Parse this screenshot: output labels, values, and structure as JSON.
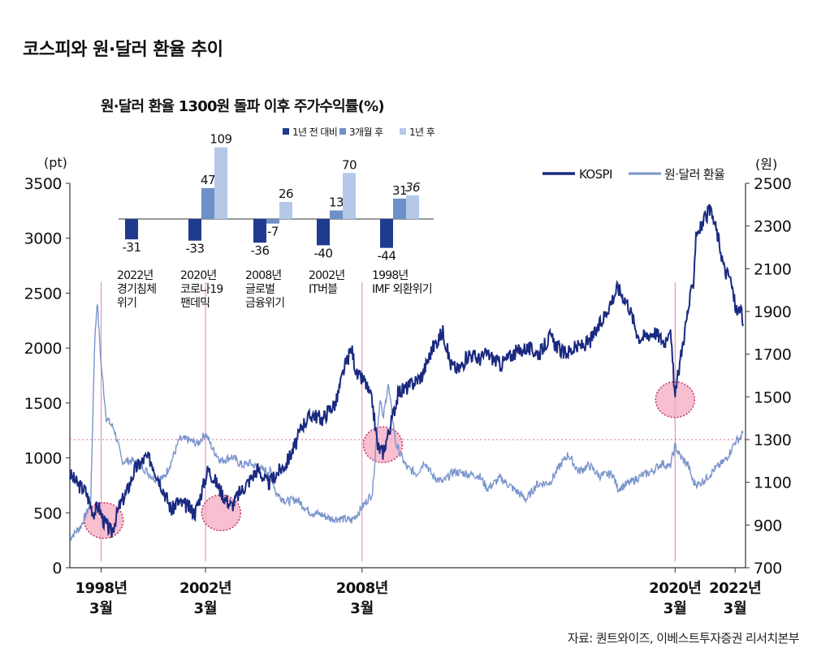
{
  "page": {
    "title": "코스피와 원·달러 환율 추이",
    "source": "자료: 퀀트와이즈, 이베스트투자증권 리서치본부"
  },
  "colors": {
    "kospi": "#1a2a80",
    "fx": "#7b95cc",
    "bar_1y_before": "#1f3b8f",
    "bar_3m_after": "#6f8fc8",
    "bar_1y_after": "#b5c8e8",
    "highlight_fill": "#f4a9c0",
    "highlight_stroke": "#c0306a",
    "marker_line": "#d26a9a"
  },
  "chart_data": [
    {
      "type": "line",
      "title": "코스피와 원·달러 환율 추이",
      "y_left": {
        "label": "(pt)",
        "ylim": [
          0,
          3500
        ],
        "ticks": [
          "3500",
          "3000",
          "2500",
          "2000",
          "1500",
          "1000",
          "500",
          "0"
        ]
      },
      "y_right": {
        "label": "(원)",
        "ylim": [
          700,
          2500
        ],
        "ticks": [
          "2500",
          "2300",
          "2100",
          "1900",
          "1700",
          "1500",
          "1300",
          "1100",
          "900",
          "700"
        ]
      },
      "x_range": [
        1997.0,
        2022.9
      ],
      "x_ticks": [
        {
          "x": 1998.2,
          "line1": "1998년",
          "line2": "3월"
        },
        {
          "x": 2002.2,
          "line1": "2002년",
          "line2": "3월"
        },
        {
          "x": 2008.2,
          "line1": "2008년",
          "line2": "3월"
        },
        {
          "x": 2020.2,
          "line1": "2020년",
          "line2": "3월"
        },
        {
          "x": 2022.5,
          "line1": "2022년",
          "line2": "3월"
        }
      ],
      "legend": [
        {
          "name": "KOSPI",
          "position": "top-right"
        },
        {
          "name": "원·달러 환율",
          "position": "top-right"
        }
      ],
      "reference_level_fx": 1300,
      "event_markers_x": [
        1998.2,
        2002.2,
        2008.2,
        2020.2
      ],
      "highlight_circles": [
        {
          "x": 1998.3,
          "kospi": 430
        },
        {
          "x": 2002.8,
          "kospi": 500
        },
        {
          "x": 2009.0,
          "kospi": 1120
        },
        {
          "x": 2020.2,
          "kospi": 1530
        }
      ],
      "series": [
        {
          "name": "KOSPI",
          "axis": "left",
          "points": [
            [
              1997.0,
              850
            ],
            [
              1997.3,
              760
            ],
            [
              1997.6,
              700
            ],
            [
              1997.9,
              500
            ],
            [
              1998.1,
              560
            ],
            [
              1998.3,
              420
            ],
            [
              1998.6,
              320
            ],
            [
              1998.9,
              560
            ],
            [
              1999.2,
              700
            ],
            [
              1999.5,
              900
            ],
            [
              1999.9,
              1000
            ],
            [
              2000.1,
              980
            ],
            [
              2000.5,
              760
            ],
            [
              2000.9,
              520
            ],
            [
              2001.1,
              600
            ],
            [
              2001.5,
              560
            ],
            [
              2001.8,
              500
            ],
            [
              2002.0,
              650
            ],
            [
              2002.3,
              900
            ],
            [
              2002.6,
              780
            ],
            [
              2002.9,
              650
            ],
            [
              2003.2,
              560
            ],
            [
              2003.5,
              680
            ],
            [
              2003.9,
              800
            ],
            [
              2004.2,
              900
            ],
            [
              2004.6,
              760
            ],
            [
              2004.9,
              850
            ],
            [
              2005.3,
              950
            ],
            [
              2005.7,
              1150
            ],
            [
              2005.9,
              1300
            ],
            [
              2006.3,
              1400
            ],
            [
              2006.7,
              1350
            ],
            [
              2006.9,
              1430
            ],
            [
              2007.2,
              1500
            ],
            [
              2007.5,
              1800
            ],
            [
              2007.8,
              2000
            ],
            [
              2008.0,
              1750
            ],
            [
              2008.3,
              1700
            ],
            [
              2008.6,
              1500
            ],
            [
              2008.8,
              1100
            ],
            [
              2009.0,
              1050
            ],
            [
              2009.3,
              1300
            ],
            [
              2009.6,
              1600
            ],
            [
              2010.0,
              1650
            ],
            [
              2010.5,
              1750
            ],
            [
              2010.9,
              2000
            ],
            [
              2011.3,
              2150
            ],
            [
              2011.6,
              1850
            ],
            [
              2011.9,
              1800
            ],
            [
              2012.3,
              1950
            ],
            [
              2012.7,
              1900
            ],
            [
              2013.0,
              1950
            ],
            [
              2013.5,
              1850
            ],
            [
              2014.0,
              1950
            ],
            [
              2014.5,
              2000
            ],
            [
              2015.0,
              1950
            ],
            [
              2015.4,
              2100
            ],
            [
              2015.9,
              1950
            ],
            [
              2016.4,
              2000
            ],
            [
              2016.9,
              2050
            ],
            [
              2017.3,
              2200
            ],
            [
              2017.7,
              2400
            ],
            [
              2018.0,
              2550
            ],
            [
              2018.4,
              2400
            ],
            [
              2018.8,
              2100
            ],
            [
              2019.0,
              2100
            ],
            [
              2019.4,
              2150
            ],
            [
              2019.8,
              2050
            ],
            [
              2020.0,
              2200
            ],
            [
              2020.2,
              1550
            ],
            [
              2020.4,
              1900
            ],
            [
              2020.7,
              2350
            ],
            [
              2020.9,
              2600
            ],
            [
              2021.0,
              3050
            ],
            [
              2021.2,
              3100
            ],
            [
              2021.5,
              3250
            ],
            [
              2021.7,
              3150
            ],
            [
              2021.9,
              2950
            ],
            [
              2022.1,
              2700
            ],
            [
              2022.3,
              2650
            ],
            [
              2022.5,
              2400
            ],
            [
              2022.6,
              2300
            ],
            [
              2022.7,
              2400
            ],
            [
              2022.8,
              2200
            ]
          ]
        },
        {
          "name": "원·달러 환율",
          "axis": "right",
          "points": [
            [
              1997.0,
              840
            ],
            [
              1997.4,
              890
            ],
            [
              1997.8,
              1000
            ],
            [
              1997.95,
              1750
            ],
            [
              1998.05,
              1950
            ],
            [
              1998.2,
              1650
            ],
            [
              1998.4,
              1400
            ],
            [
              1998.7,
              1350
            ],
            [
              1999.0,
              1200
            ],
            [
              1999.4,
              1200
            ],
            [
              1999.8,
              1170
            ],
            [
              2000.2,
              1120
            ],
            [
              2000.6,
              1120
            ],
            [
              2000.9,
              1200
            ],
            [
              2001.2,
              1300
            ],
            [
              2001.5,
              1300
            ],
            [
              2001.9,
              1280
            ],
            [
              2002.2,
              1330
            ],
            [
              2002.5,
              1250
            ],
            [
              2002.8,
              1200
            ],
            [
              2003.2,
              1220
            ],
            [
              2003.6,
              1180
            ],
            [
              2003.9,
              1190
            ],
            [
              2004.3,
              1160
            ],
            [
              2004.7,
              1150
            ],
            [
              2004.9,
              1050
            ],
            [
              2005.3,
              1010
            ],
            [
              2005.7,
              1020
            ],
            [
              2006.2,
              960
            ],
            [
              2006.6,
              950
            ],
            [
              2007.0,
              930
            ],
            [
              2007.4,
              930
            ],
            [
              2007.8,
              920
            ],
            [
              2008.0,
              950
            ],
            [
              2008.3,
              1000
            ],
            [
              2008.6,
              1050
            ],
            [
              2008.75,
              1300
            ],
            [
              2008.9,
              1500
            ],
            [
              2009.0,
              1390
            ],
            [
              2009.2,
              1560
            ],
            [
              2009.5,
              1280
            ],
            [
              2009.9,
              1170
            ],
            [
              2010.3,
              1140
            ],
            [
              2010.6,
              1200
            ],
            [
              2010.9,
              1130
            ],
            [
              2011.3,
              1100
            ],
            [
              2011.7,
              1150
            ],
            [
              2012.2,
              1140
            ],
            [
              2012.7,
              1130
            ],
            [
              2013.0,
              1070
            ],
            [
              2013.5,
              1120
            ],
            [
              2014.0,
              1070
            ],
            [
              2014.5,
              1020
            ],
            [
              2014.9,
              1090
            ],
            [
              2015.4,
              1100
            ],
            [
              2015.8,
              1180
            ],
            [
              2016.1,
              1230
            ],
            [
              2016.5,
              1150
            ],
            [
              2016.9,
              1180
            ],
            [
              2017.3,
              1130
            ],
            [
              2017.8,
              1140
            ],
            [
              2018.0,
              1070
            ],
            [
              2018.5,
              1100
            ],
            [
              2018.9,
              1130
            ],
            [
              2019.3,
              1150
            ],
            [
              2019.7,
              1190
            ],
            [
              2020.0,
              1170
            ],
            [
              2020.2,
              1270
            ],
            [
              2020.4,
              1220
            ],
            [
              2020.7,
              1180
            ],
            [
              2020.9,
              1100
            ],
            [
              2021.1,
              1090
            ],
            [
              2021.4,
              1120
            ],
            [
              2021.7,
              1160
            ],
            [
              2021.9,
              1180
            ],
            [
              2022.1,
              1200
            ],
            [
              2022.3,
              1240
            ],
            [
              2022.5,
              1290
            ],
            [
              2022.7,
              1310
            ],
            [
              2022.8,
              1330
            ]
          ]
        }
      ]
    },
    {
      "type": "bar",
      "title": "원·달러 환율 1300원 돌파 이후 주가수익률(%)",
      "legend": [
        "1년 전 대비",
        "3개월 후",
        "1년 후"
      ],
      "series_names": [
        "1년 전 대비",
        "3개월 후",
        "1년 후"
      ],
      "categories": [
        {
          "line1": "2022년",
          "line2": "경기침체",
          "line3": "위기"
        },
        {
          "line1": "2020년",
          "line2": "코로나19",
          "line3": "팬데믹"
        },
        {
          "line1": "2008년",
          "line2": "글로벌",
          "line3": "금융위기"
        },
        {
          "line1": "2002년",
          "line2": "IT버블",
          "line3": ""
        },
        {
          "line1": "1998년",
          "line2": "IMF 외환위기",
          "line3": ""
        }
      ],
      "values": [
        [
          -31,
          null,
          null
        ],
        [
          -33,
          47,
          109
        ],
        [
          -36,
          -7,
          26
        ],
        [
          -40,
          13,
          70
        ],
        [
          -44,
          31,
          36
        ]
      ],
      "labels": [
        [
          "-31",
          "",
          ""
        ],
        [
          "-33",
          "47",
          "109"
        ],
        [
          "-36",
          "-7",
          "26"
        ],
        [
          "-40",
          "13",
          "70"
        ],
        [
          "-44",
          "31",
          "36"
        ]
      ]
    }
  ]
}
